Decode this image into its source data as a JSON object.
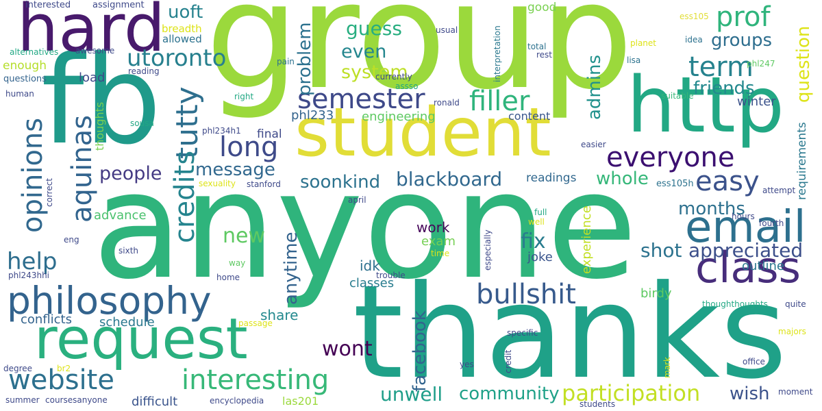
{
  "words": [
    {
      "text": "group",
      "color": "#9bd93c"
    },
    {
      "text": "anyone",
      "color": "#2fb47c"
    },
    {
      "text": "thanks",
      "color": "#1fa188"
    },
    {
      "text": "fb",
      "color": "#1f9a8a"
    },
    {
      "text": "student",
      "color": "#e1dd37"
    },
    {
      "text": "http",
      "color": "#22a884"
    },
    {
      "text": "request",
      "color": "#2ab07f"
    },
    {
      "text": "hard",
      "color": "#481a6c"
    },
    {
      "text": "class",
      "color": "#472d7b"
    },
    {
      "text": "email",
      "color": "#2d708e"
    },
    {
      "text": "philosophy",
      "color": "#33638d"
    },
    {
      "text": "website",
      "color": "#2d708e"
    },
    {
      "text": "interesting",
      "color": "#37b878"
    },
    {
      "text": "opinions",
      "color": "#31688e"
    },
    {
      "text": "aquinas",
      "color": "#32648e"
    },
    {
      "text": "tutty",
      "color": "#2e6f8e"
    },
    {
      "text": "credits",
      "color": "#25848e"
    },
    {
      "text": "long",
      "color": "#3e4a89"
    },
    {
      "text": "everyone",
      "color": "#3b0f70"
    },
    {
      "text": "semester",
      "color": "#3e4989"
    },
    {
      "text": "filler",
      "color": "#2fb47c"
    },
    {
      "text": "bullshit",
      "color": "#375a8c"
    },
    {
      "text": "participation",
      "color": "#c2df23"
    },
    {
      "text": "easy",
      "color": "#3b528b"
    },
    {
      "text": "term",
      "color": "#26828e"
    },
    {
      "text": "prof",
      "color": "#2fb47c"
    },
    {
      "text": "uoft",
      "color": "#26828e"
    },
    {
      "text": "utoronto",
      "color": "#27808e"
    },
    {
      "text": "guess",
      "color": "#28ae80"
    },
    {
      "text": "even",
      "color": "#24868e"
    },
    {
      "text": "system",
      "color": "#bddf26"
    },
    {
      "text": "groups",
      "color": "#2e6e8e"
    },
    {
      "text": "friends",
      "color": "#23898e"
    },
    {
      "text": "question",
      "color": "#dde318"
    },
    {
      "text": "problem",
      "color": "#2c718e"
    },
    {
      "text": "admins",
      "color": "#21918c"
    },
    {
      "text": "message",
      "color": "#31688e"
    },
    {
      "text": "people",
      "color": "#443a83"
    },
    {
      "text": "help",
      "color": "#2e6e8e"
    },
    {
      "text": "soonkind",
      "color": "#2c728e"
    },
    {
      "text": "blackboard",
      "color": "#31688e"
    },
    {
      "text": "whole",
      "color": "#35b779"
    },
    {
      "text": "months",
      "color": "#2d708e"
    },
    {
      "text": "appreciated",
      "color": "#3c4f8a"
    },
    {
      "text": "shot",
      "color": "#2c728e"
    },
    {
      "text": "fix",
      "color": "#287c8e"
    },
    {
      "text": "new",
      "color": "#5ec962"
    },
    {
      "text": "anytime",
      "color": "#33638d"
    },
    {
      "text": "community",
      "color": "#1fa188"
    },
    {
      "text": "unwell",
      "color": "#1f9e89"
    },
    {
      "text": "wish",
      "color": "#3b528b"
    },
    {
      "text": "wont",
      "color": "#440154"
    },
    {
      "text": "facebook",
      "color": "#32648e"
    },
    {
      "text": "share",
      "color": "#23898e"
    },
    {
      "text": "conflicts",
      "color": "#33638d"
    },
    {
      "text": "schedule",
      "color": "#2a788e"
    },
    {
      "text": "difficult",
      "color": "#3a548c"
    },
    {
      "text": "work",
      "color": "#46075a"
    },
    {
      "text": "exam",
      "color": "#75d054"
    },
    {
      "text": "idk",
      "color": "#2d708e"
    },
    {
      "text": "classes",
      "color": "#287c8e"
    },
    {
      "text": "joke",
      "color": "#3a548c"
    },
    {
      "text": "outline",
      "color": "#2a788e"
    },
    {
      "text": "birdy",
      "color": "#5ec962"
    },
    {
      "text": "experience",
      "color": "#c2df23"
    },
    {
      "text": "readings",
      "color": "#31688e"
    },
    {
      "text": "ess105h",
      "color": "#2c728e"
    },
    {
      "text": "content",
      "color": "#39568c"
    },
    {
      "text": "winter",
      "color": "#3b528b"
    },
    {
      "text": "requirements",
      "color": "#2a788e"
    },
    {
      "text": "engineering",
      "color": "#5ec962"
    },
    {
      "text": "phl233",
      "color": "#33638d"
    },
    {
      "text": "final",
      "color": "#3e4989"
    },
    {
      "text": "thoughts",
      "color": "#7ad151"
    },
    {
      "text": "load",
      "color": "#3e4a89"
    },
    {
      "text": "advance",
      "color": "#4ac16d"
    },
    {
      "text": "enough",
      "color": "#b5de2b"
    },
    {
      "text": "breadth",
      "color": "#dde318"
    },
    {
      "text": "allowed",
      "color": "#2c728e"
    },
    {
      "text": "interested",
      "color": "#3e4989"
    },
    {
      "text": "assignment",
      "color": "#3e4989"
    },
    {
      "text": "good",
      "color": "#7ad151"
    },
    {
      "text": "usual",
      "color": "#3e4989"
    },
    {
      "text": "ess105",
      "color": "#e1dd37"
    },
    {
      "text": "idea",
      "color": "#2c718e"
    },
    {
      "text": "planet",
      "color": "#dde318"
    },
    {
      "text": "lisa",
      "color": "#2c728e"
    },
    {
      "text": "phl247",
      "color": "#5ec962"
    },
    {
      "text": "total",
      "color": "#2c718e"
    },
    {
      "text": "rest",
      "color": "#3e4989"
    },
    {
      "text": "pain",
      "color": "#2c718e"
    },
    {
      "text": "interpretation",
      "color": "#2a788e"
    },
    {
      "text": "currently",
      "color": "#3e4989"
    },
    {
      "text": "assso",
      "color": "#22a884"
    },
    {
      "text": "ronald",
      "color": "#3e4989"
    },
    {
      "text": "suitable",
      "color": "#35b779"
    },
    {
      "text": "easier",
      "color": "#3e4989"
    },
    {
      "text": "alternatives",
      "color": "#22a884"
    },
    {
      "text": "awesome",
      "color": "#3e4989"
    },
    {
      "text": "reading",
      "color": "#3e4989"
    },
    {
      "text": "questions",
      "color": "#33638d"
    },
    {
      "text": "human",
      "color": "#3e4989"
    },
    {
      "text": "right",
      "color": "#22a884"
    },
    {
      "text": "sousa",
      "color": "#22a884"
    },
    {
      "text": "phl234h1",
      "color": "#3e4989"
    },
    {
      "text": "sexuality",
      "color": "#dde318"
    },
    {
      "text": "stanford",
      "color": "#3e4989"
    },
    {
      "text": "correct",
      "color": "#3e4989"
    },
    {
      "text": "april",
      "color": "#3e4989"
    },
    {
      "text": "attempt",
      "color": "#3e4989"
    },
    {
      "text": "hours",
      "color": "#3e4989"
    },
    {
      "text": "fourth",
      "color": "#3e4989"
    },
    {
      "text": "full",
      "color": "#22a884"
    },
    {
      "text": "well",
      "color": "#dde318"
    },
    {
      "text": "especially",
      "color": "#3e4989"
    },
    {
      "text": "eng",
      "color": "#3e4989"
    },
    {
      "text": "sixth",
      "color": "#3e4989"
    },
    {
      "text": "time",
      "color": "#dde318"
    },
    {
      "text": "way",
      "color": "#5ec962"
    },
    {
      "text": "phl243hhi",
      "color": "#3e4989"
    },
    {
      "text": "home",
      "color": "#3e4989"
    },
    {
      "text": "trouble",
      "color": "#3e4989"
    },
    {
      "text": "passage",
      "color": "#dde318"
    },
    {
      "text": "thoughthoughts",
      "color": "#22a884"
    },
    {
      "text": "quite",
      "color": "#3e4989"
    },
    {
      "text": "specific",
      "color": "#3e4989"
    },
    {
      "text": "majors",
      "color": "#dde318"
    },
    {
      "text": "credit",
      "color": "#3e4989"
    },
    {
      "text": "mark",
      "color": "#dde318"
    },
    {
      "text": "yes",
      "color": "#3e4989"
    },
    {
      "text": "office",
      "color": "#3e4989"
    },
    {
      "text": "degree",
      "color": "#3e4989"
    },
    {
      "text": "br2",
      "color": "#dde318"
    },
    {
      "text": "moment",
      "color": "#3e4989"
    },
    {
      "text": "summer",
      "color": "#3e4989"
    },
    {
      "text": "coursesanyone",
      "color": "#3e4989"
    },
    {
      "text": "encyclopedia",
      "color": "#3e4989"
    },
    {
      "text": "las201",
      "color": "#9bd93c"
    },
    {
      "text": "students",
      "color": "#3e4989"
    }
  ]
}
